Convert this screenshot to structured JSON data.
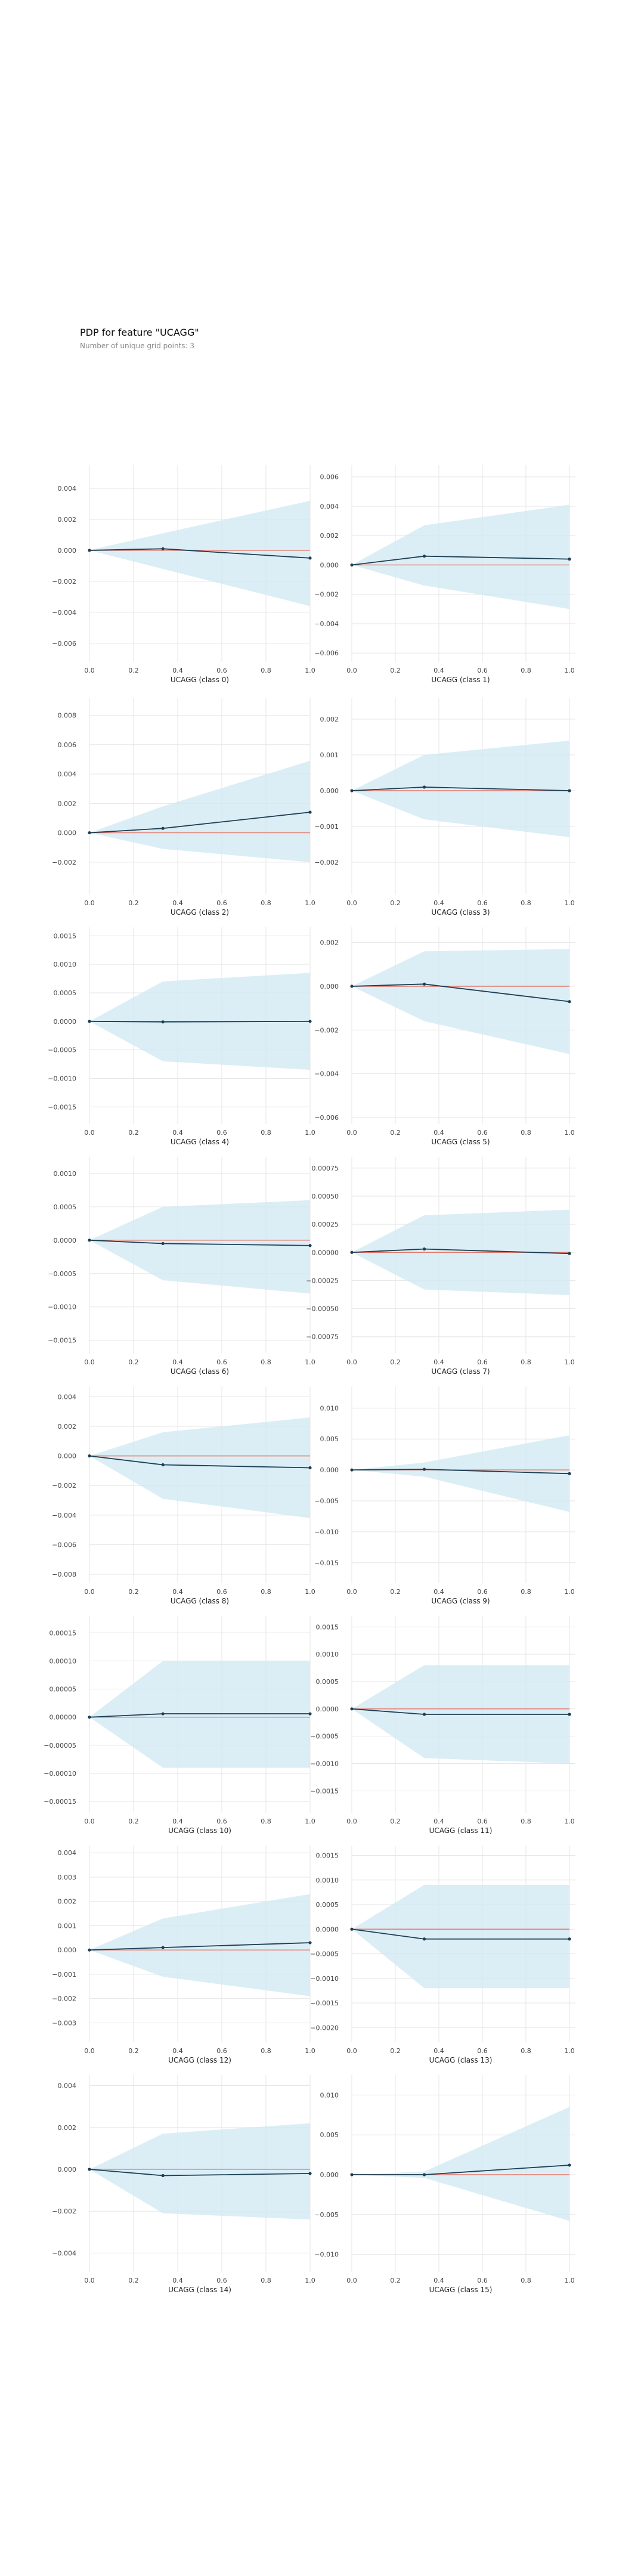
{
  "figure": {
    "title": "PDP for feature \"UCAGG\"",
    "subtitle": "Number of unique grid points: 3"
  },
  "colors": {
    "band": "#cfe8f3",
    "line": "#1d3f54",
    "reference": "#e5776a",
    "grid": "#e6e6e6",
    "tick_text": "#444444"
  },
  "chart_data": [
    {
      "type": "line",
      "xlabel": "UCAGG (class 0)",
      "x": [
        0,
        0.333,
        1.0
      ],
      "y": [
        0,
        0.0001,
        -0.0005
      ],
      "upper": [
        0,
        0.0011,
        0.0032
      ],
      "lower": [
        0,
        -0.0012,
        -0.0036
      ],
      "xticks": [
        "0.0",
        "0.2",
        "0.4",
        "0.6",
        "0.8",
        "1.0"
      ],
      "yticks": [
        0.004,
        0.002,
        0.0,
        -0.002,
        -0.004,
        -0.006
      ],
      "ytick_labels": [
        "0.004",
        "0.002",
        "0.000",
        "−0.002",
        "−0.004",
        "−0.006"
      ],
      "ylim": [
        -0.0072,
        0.0055
      ],
      "grid": true
    },
    {
      "type": "line",
      "xlabel": "UCAGG (class 1)",
      "x": [
        0,
        0.333,
        1.0
      ],
      "y": [
        0,
        0.0006,
        0.0004
      ],
      "upper": [
        0,
        0.0027,
        0.0041
      ],
      "lower": [
        0,
        -0.0014,
        -0.003
      ],
      "xticks": [
        "0.0",
        "0.2",
        "0.4",
        "0.6",
        "0.8",
        "1.0"
      ],
      "yticks": [
        0.006,
        0.004,
        0.002,
        0.0,
        -0.002,
        -0.004,
        -0.006
      ],
      "ytick_labels": [
        "0.006",
        "0.004",
        "0.002",
        "0.000",
        "−0.002",
        "−0.004",
        "−0.006"
      ],
      "ylim": [
        -0.0066,
        0.0068
      ],
      "grid": true
    },
    {
      "type": "line",
      "xlabel": "UCAGG (class 2)",
      "x": [
        0,
        0.333,
        1.0
      ],
      "y": [
        0,
        0.0003,
        0.0014
      ],
      "upper": [
        0,
        0.0018,
        0.0049
      ],
      "lower": [
        0,
        -0.0011,
        -0.002
      ],
      "xticks": [
        "0.0",
        "0.2",
        "0.4",
        "0.6",
        "0.8",
        "1.0"
      ],
      "yticks": [
        0.008,
        0.006,
        0.004,
        0.002,
        0.0,
        -0.002
      ],
      "ytick_labels": [
        "0.008",
        "0.006",
        "0.004",
        "0.002",
        "0.000",
        "−0.002"
      ],
      "ylim": [
        -0.0042,
        0.0092
      ],
      "grid": true
    },
    {
      "type": "line",
      "xlabel": "UCAGG (class 3)",
      "x": [
        0,
        0.333,
        1.0
      ],
      "y": [
        0,
        0.0001,
        0.0
      ],
      "upper": [
        0,
        0.001,
        0.0014
      ],
      "lower": [
        0,
        -0.0008,
        -0.0013
      ],
      "xticks": [
        "0.0",
        "0.2",
        "0.4",
        "0.6",
        "0.8",
        "1.0"
      ],
      "yticks": [
        0.002,
        0.001,
        0.0,
        -0.001,
        -0.002
      ],
      "ytick_labels": [
        "0.002",
        "0.001",
        "0.000",
        "−0.001",
        "−0.002"
      ],
      "ylim": [
        -0.0029,
        0.0026
      ],
      "grid": true
    },
    {
      "type": "line",
      "xlabel": "UCAGG (class 4)",
      "x": [
        0,
        0.333,
        1.0
      ],
      "y": [
        0,
        -1e-05,
        0.0
      ],
      "upper": [
        0,
        0.0007,
        0.00085
      ],
      "lower": [
        0,
        -0.0007,
        -0.00085
      ],
      "xticks": [
        "0.0",
        "0.2",
        "0.4",
        "0.6",
        "0.8",
        "1.0"
      ],
      "yticks": [
        0.0015,
        0.001,
        0.0005,
        0.0,
        -0.0005,
        -0.001,
        -0.0015
      ],
      "ytick_labels": [
        "0.0015",
        "0.0010",
        "0.0005",
        "0.0000",
        "−0.0005",
        "−0.0010",
        "−0.0015"
      ],
      "ylim": [
        -0.0018,
        0.00165
      ],
      "grid": true
    },
    {
      "type": "line",
      "xlabel": "UCAGG (class 5)",
      "x": [
        0,
        0.333,
        1.0
      ],
      "y": [
        0,
        0.0001,
        -0.0007
      ],
      "upper": [
        0,
        0.0016,
        0.0017
      ],
      "lower": [
        0,
        -0.0016,
        -0.0031
      ],
      "xticks": [
        "0.0",
        "0.2",
        "0.4",
        "0.6",
        "0.8",
        "1.0"
      ],
      "yticks": [
        0.002,
        0.0,
        -0.002,
        -0.004,
        -0.006
      ],
      "ytick_labels": [
        "0.002",
        "0.000",
        "−0.002",
        "−0.004",
        "−0.006"
      ],
      "ylim": [
        -0.0063,
        0.0027
      ],
      "grid": true
    },
    {
      "type": "line",
      "xlabel": "UCAGG (class 6)",
      "x": [
        0,
        0.333,
        1.0
      ],
      "y": [
        0,
        -5e-05,
        -8e-05
      ],
      "upper": [
        0,
        0.0005,
        0.0006
      ],
      "lower": [
        0,
        -0.0006,
        -0.0008
      ],
      "xticks": [
        "0.0",
        "0.2",
        "0.4",
        "0.6",
        "0.8",
        "1.0"
      ],
      "yticks": [
        0.001,
        0.0005,
        0.0,
        -0.0005,
        -0.001,
        -0.0015
      ],
      "ytick_labels": [
        "0.0010",
        "0.0005",
        "0.0000",
        "−0.0005",
        "−0.0010",
        "−0.0015"
      ],
      "ylim": [
        -0.0017,
        0.00125
      ],
      "grid": true
    },
    {
      "type": "line",
      "xlabel": "UCAGG (class 7)",
      "x": [
        0,
        0.333,
        1.0
      ],
      "y": [
        0,
        3e-05,
        -1e-05
      ],
      "upper": [
        0,
        0.00033,
        0.00038
      ],
      "lower": [
        0,
        -0.00033,
        -0.00038
      ],
      "xticks": [
        "0.0",
        "0.2",
        "0.4",
        "0.6",
        "0.8",
        "1.0"
      ],
      "yticks": [
        0.00075,
        0.0005,
        0.00025,
        0.0,
        -0.00025,
        -0.0005,
        -0.00075
      ],
      "ytick_labels": [
        "0.00075",
        "0.00050",
        "0.00025",
        "0.00000",
        "−0.00025",
        "−0.00050",
        "−0.00075"
      ],
      "ylim": [
        -0.0009,
        0.00085
      ],
      "grid": true
    },
    {
      "type": "line",
      "xlabel": "UCAGG (class 8)",
      "x": [
        0,
        0.333,
        1.0
      ],
      "y": [
        0,
        -0.0006,
        -0.0008
      ],
      "upper": [
        0,
        0.0016,
        0.0026
      ],
      "lower": [
        0,
        -0.0029,
        -0.0042
      ],
      "xticks": [
        "0.0",
        "0.2",
        "0.4",
        "0.6",
        "0.8",
        "1.0"
      ],
      "yticks": [
        0.004,
        0.002,
        0.0,
        -0.002,
        -0.004,
        -0.006,
        -0.008
      ],
      "ytick_labels": [
        "0.004",
        "0.002",
        "0.000",
        "−0.002",
        "−0.004",
        "−0.006",
        "−0.008"
      ],
      "ylim": [
        -0.0086,
        0.0047
      ],
      "grid": true
    },
    {
      "type": "line",
      "xlabel": "UCAGG (class 9)",
      "x": [
        0,
        0.333,
        1.0
      ],
      "y": [
        0,
        0.0001,
        -0.0006
      ],
      "upper": [
        0,
        0.0012,
        0.0056
      ],
      "lower": [
        0,
        -0.0011,
        -0.0068
      ],
      "xticks": [
        "0.0",
        "0.2",
        "0.4",
        "0.6",
        "0.8",
        "1.0"
      ],
      "yticks": [
        0.01,
        0.005,
        0.0,
        -0.005,
        -0.01,
        -0.015
      ],
      "ytick_labels": [
        "0.010",
        "0.005",
        "0.000",
        "−0.005",
        "−0.010",
        "−0.015"
      ],
      "ylim": [
        -0.0183,
        0.0135
      ],
      "grid": true
    },
    {
      "type": "line",
      "xlabel": "UCAGG (class 10)",
      "x": [
        0,
        0.333,
        1.0
      ],
      "y": [
        0,
        6e-06,
        6e-06
      ],
      "upper": [
        0,
        0.0001,
        0.0001
      ],
      "lower": [
        0,
        -9e-05,
        -9e-05
      ],
      "xticks": [
        "0.0",
        "0.2",
        "0.4",
        "0.6",
        "0.8",
        "1.0"
      ],
      "yticks": [
        0.00015,
        0.0001,
        5e-05,
        0.0,
        -5e-05,
        -0.0001,
        -0.00015
      ],
      "ytick_labels": [
        "0.00015",
        "0.00010",
        "0.00005",
        "0.00000",
        "−0.00005",
        "−0.00010",
        "−0.00015"
      ],
      "ylim": [
        -0.00017,
        0.00018
      ],
      "grid": true
    },
    {
      "type": "line",
      "xlabel": "UCAGG (class 11)",
      "x": [
        0,
        0.333,
        1.0
      ],
      "y": [
        0,
        -0.0001,
        -0.0001
      ],
      "upper": [
        0,
        0.0008,
        0.0008
      ],
      "lower": [
        0,
        -0.0009,
        -0.001
      ],
      "xticks": [
        "0.0",
        "0.2",
        "0.4",
        "0.6",
        "0.8",
        "1.0"
      ],
      "yticks": [
        0.0015,
        0.001,
        0.0005,
        0.0,
        -0.0005,
        -0.001,
        -0.0015
      ],
      "ytick_labels": [
        "0.0015",
        "0.0010",
        "0.0005",
        "0.0000",
        "−0.0005",
        "−0.0010",
        "−0.0015"
      ],
      "ylim": [
        -0.0019,
        0.0017
      ],
      "grid": true
    },
    {
      "type": "line",
      "xlabel": "UCAGG (class 12)",
      "x": [
        0,
        0.333,
        1.0
      ],
      "y": [
        0,
        0.0001,
        0.0003
      ],
      "upper": [
        0,
        0.0013,
        0.0023
      ],
      "lower": [
        0,
        -0.0011,
        -0.0019
      ],
      "xticks": [
        "0.0",
        "0.2",
        "0.4",
        "0.6",
        "0.8",
        "1.0"
      ],
      "yticks": [
        0.004,
        0.003,
        0.002,
        0.001,
        0.0,
        -0.001,
        -0.002,
        -0.003
      ],
      "ytick_labels": [
        "0.004",
        "0.003",
        "0.002",
        "0.001",
        "0.000",
        "−0.001",
        "−0.002",
        "−0.003"
      ],
      "ylim": [
        -0.0038,
        0.0043
      ],
      "grid": true
    },
    {
      "type": "line",
      "xlabel": "UCAGG (class 13)",
      "x": [
        0,
        0.333,
        1.0
      ],
      "y": [
        0,
        -0.0002,
        -0.0002
      ],
      "upper": [
        0,
        0.0009,
        0.0009
      ],
      "lower": [
        0,
        -0.0012,
        -0.0012
      ],
      "xticks": [
        "0.0",
        "0.2",
        "0.4",
        "0.6",
        "0.8",
        "1.0"
      ],
      "yticks": [
        0.0015,
        0.001,
        0.0005,
        0.0,
        -0.0005,
        -0.001,
        -0.0015,
        -0.002
      ],
      "ytick_labels": [
        "0.0015",
        "0.0010",
        "0.0005",
        "0.0000",
        "−0.0005",
        "−0.0010",
        "−0.0015",
        "−0.0020"
      ],
      "ylim": [
        -0.0023,
        0.0017
      ],
      "grid": true
    },
    {
      "type": "line",
      "xlabel": "UCAGG (class 14)",
      "x": [
        0,
        0.333,
        1.0
      ],
      "y": [
        0,
        -0.0003,
        -0.0002
      ],
      "upper": [
        0,
        0.0017,
        0.0022
      ],
      "lower": [
        0,
        -0.0021,
        -0.0024
      ],
      "xticks": [
        "0.0",
        "0.2",
        "0.4",
        "0.6",
        "0.8",
        "1.0"
      ],
      "yticks": [
        0.004,
        0.002,
        0.0,
        -0.002,
        -0.004
      ],
      "ytick_labels": [
        "0.004",
        "0.002",
        "0.000",
        "−0.002",
        "−0.004"
      ],
      "ylim": [
        -0.0049,
        0.0045
      ],
      "grid": true
    },
    {
      "type": "line",
      "xlabel": "UCAGG (class 15)",
      "x": [
        0,
        0.333,
        1.0
      ],
      "y": [
        0,
        0.0,
        0.0012
      ],
      "upper": [
        0,
        0.0004,
        0.0085
      ],
      "lower": [
        0,
        -0.0004,
        -0.0058
      ],
      "xticks": [
        "0.0",
        "0.2",
        "0.4",
        "0.6",
        "0.8",
        "1.0"
      ],
      "yticks": [
        0.01,
        0.005,
        0.0,
        -0.005,
        -0.01
      ],
      "ytick_labels": [
        "0.010",
        "0.005",
        "0.000",
        "−0.005",
        "−0.010"
      ],
      "ylim": [
        -0.0122,
        0.0125
      ],
      "grid": true
    }
  ]
}
